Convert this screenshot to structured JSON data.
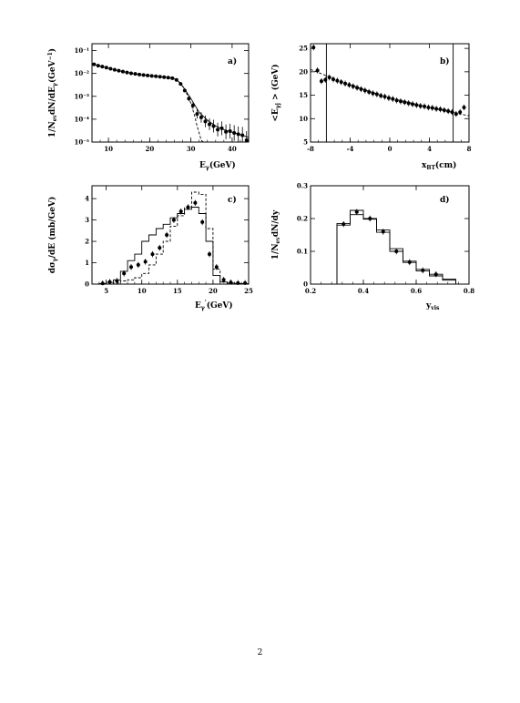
{
  "page_number": "2",
  "chart_data": [
    {
      "type": "scatter",
      "panel": "a)",
      "xlabel": "E_γ(GeV)",
      "ylabel": "1/N_ev dN/dE_γ(GeV^-1)",
      "xlim": [
        6,
        44
      ],
      "ylim": [
        1e-05,
        0.2
      ],
      "yscale": "log",
      "xticks": [
        10,
        20,
        30,
        40
      ],
      "yticks": [
        1e-05,
        0.0001,
        0.001,
        0.01,
        0.1
      ],
      "ytick_labels": [
        "10^-5",
        "10^-4",
        "10^-3",
        "10^-2",
        "10^-1"
      ],
      "points": {
        "x": [
          6.5,
          7.5,
          8.5,
          9.5,
          10.5,
          11.5,
          12.5,
          13.5,
          14.5,
          15.5,
          16.5,
          17.5,
          18.5,
          19.5,
          20.5,
          21.5,
          22.5,
          23.5,
          24.5,
          25.5,
          26.5,
          27.5,
          28.5,
          29.5,
          30.5,
          31.5,
          32.5,
          33.5,
          34.5,
          35.5,
          36.5,
          37.5,
          38.5,
          39.5,
          40.5,
          41.5,
          42.5,
          43.5
        ],
        "y": [
          0.025,
          0.022,
          0.02,
          0.018,
          0.016,
          0.0145,
          0.0132,
          0.012,
          0.011,
          0.0102,
          0.0096,
          0.009,
          0.0086,
          0.0082,
          0.0078,
          0.0075,
          0.0072,
          0.0069,
          0.0066,
          0.0062,
          0.0052,
          0.0035,
          0.0018,
          0.0008,
          0.0004,
          0.00017,
          0.00012,
          8e-05,
          6e-05,
          5e-05,
          3.5e-05,
          4e-05,
          2.8e-05,
          3e-05,
          2.5e-05,
          2.2e-05,
          2e-05,
          1.2e-05
        ],
        "yerr_factor": [
          1,
          1,
          1,
          1,
          1,
          1,
          1,
          1,
          1,
          1,
          1,
          1,
          1,
          1,
          1,
          1,
          1,
          1,
          1,
          1,
          1.1,
          1.15,
          1.2,
          1.3,
          1.4,
          1.6,
          1.7,
          1.8,
          1.8,
          1.9,
          2.0,
          2.0,
          2.1,
          2.1,
          2.2,
          2.2,
          2.3,
          2.5
        ]
      },
      "curve_solid": {
        "x": [
          6,
          8,
          10,
          12,
          14,
          16,
          18,
          20,
          22,
          24,
          25,
          26,
          27,
          28,
          29,
          30,
          31,
          32,
          34,
          36,
          38,
          40,
          42,
          44
        ],
        "y": [
          0.026,
          0.021,
          0.017,
          0.0138,
          0.0115,
          0.0099,
          0.0088,
          0.0079,
          0.0073,
          0.0067,
          0.0064,
          0.0058,
          0.0045,
          0.0028,
          0.0015,
          0.0008,
          0.0004,
          0.0002,
          9e-05,
          5e-05,
          3.5e-05,
          2.7e-05,
          2.1e-05,
          1.6e-05
        ]
      },
      "curve_dashed": {
        "x": [
          25,
          26,
          27,
          28,
          29,
          30,
          31,
          31.5,
          32,
          32.5,
          33
        ],
        "y": [
          0.0064,
          0.0057,
          0.0044,
          0.0027,
          0.0013,
          0.0005,
          0.00012,
          5e-05,
          2.5e-05,
          1.2e-05,
          8e-06
        ]
      }
    },
    {
      "type": "scatter",
      "panel": "b)",
      "xlabel": "x_BT(cm)",
      "ylabel": "<E_γj > (GeV)",
      "xlim": [
        -8,
        8
      ],
      "ylim": [
        5,
        26
      ],
      "xticks": [
        -8,
        -4,
        0,
        4,
        8
      ],
      "yticks": [
        5,
        10,
        15,
        20,
        25
      ],
      "vlines": [
        -6.4,
        6.4
      ],
      "points": {
        "x": [
          -7.7,
          -7.3,
          -6.9,
          -6.5,
          -6.1,
          -5.7,
          -5.3,
          -4.9,
          -4.5,
          -4.1,
          -3.7,
          -3.3,
          -2.9,
          -2.5,
          -2.1,
          -1.7,
          -1.3,
          -0.9,
          -0.5,
          -0.1,
          0.3,
          0.7,
          1.1,
          1.5,
          1.9,
          2.3,
          2.7,
          3.1,
          3.5,
          3.9,
          4.3,
          4.7,
          5.1,
          5.5,
          5.9,
          6.3,
          6.7,
          7.1,
          7.5
        ],
        "y": [
          25.2,
          20.3,
          18.0,
          18.3,
          18.8,
          18.4,
          18.1,
          17.8,
          17.5,
          17.2,
          16.9,
          16.6,
          16.3,
          16.0,
          15.7,
          15.4,
          15.2,
          14.9,
          14.7,
          14.4,
          14.2,
          13.9,
          13.7,
          13.5,
          13.3,
          13.1,
          12.9,
          12.7,
          12.6,
          12.4,
          12.3,
          12.1,
          12.0,
          11.8,
          11.6,
          11.4,
          11.0,
          11.4,
          12.4
        ]
      },
      "curve_dashed": {
        "x": [
          -8,
          -4,
          0,
          4,
          8
        ],
        "y": [
          20.5,
          17.2,
          14.4,
          12.4,
          10.6
        ]
      }
    },
    {
      "type": "step",
      "panel": "c)",
      "xlabel": "E'_γ(GeV)",
      "ylabel": "dσ_γ/dE (mb/GeV)",
      "xlim": [
        3,
        25
      ],
      "ylim": [
        0,
        4.6
      ],
      "xticks": [
        5,
        10,
        15,
        20,
        25
      ],
      "yticks": [
        0,
        1,
        2,
        3,
        4
      ],
      "bin_edges": [
        4,
        5,
        6,
        7,
        8,
        9,
        10,
        11,
        12,
        13,
        14,
        15,
        16,
        17,
        18,
        19,
        20,
        21,
        22,
        23,
        24,
        25
      ],
      "solid": [
        0.02,
        0.08,
        0.2,
        0.6,
        1.1,
        1.4,
        2.0,
        2.3,
        2.6,
        2.8,
        3.1,
        3.3,
        3.5,
        3.6,
        3.3,
        2.0,
        0.4,
        0.1,
        0.05,
        0.03,
        0.02
      ],
      "dashed": [
        0,
        0,
        0.05,
        0.15,
        0.2,
        0.3,
        0.5,
        0.9,
        1.4,
        2.0,
        2.7,
        3.2,
        3.6,
        4.3,
        4.2,
        2.6,
        0.7,
        0.1,
        0.02,
        0,
        0
      ],
      "points": {
        "x": [
          4.5,
          5.5,
          6.5,
          7.5,
          8.5,
          9.5,
          10.5,
          11.5,
          12.5,
          13.5,
          14.5,
          15.5,
          16.5,
          17.5,
          18.5,
          19.5,
          20.5,
          21.5,
          22.5,
          23.5,
          24.5
        ],
        "y": [
          0.03,
          0.1,
          0.15,
          0.5,
          0.8,
          0.9,
          1.05,
          1.4,
          1.7,
          2.3,
          3.0,
          3.4,
          3.6,
          3.8,
          2.9,
          1.4,
          0.8,
          0.2,
          0.08,
          0.05,
          0.05
        ]
      }
    },
    {
      "type": "step",
      "panel": "d)",
      "xlabel": "y_vis",
      "ylabel": "1/N_ev dN/dy",
      "xlim": [
        0.2,
        0.8
      ],
      "ylim": [
        0,
        0.3
      ],
      "xticks": [
        0.2,
        0.4,
        0.6,
        0.8
      ],
      "yticks": [
        0,
        0.1,
        0.2,
        0.3
      ],
      "bin_edges": [
        0.3,
        0.35,
        0.4,
        0.45,
        0.5,
        0.55,
        0.6,
        0.65,
        0.7,
        0.75
      ],
      "histA": [
        0.18,
        0.225,
        0.2,
        0.165,
        0.108,
        0.07,
        0.045,
        0.03,
        0.015
      ],
      "histB": [
        0.185,
        0.212,
        0.198,
        0.158,
        0.1,
        0.066,
        0.04,
        0.025,
        0.012
      ],
      "points": {
        "x": [
          0.325,
          0.375,
          0.425,
          0.475,
          0.525,
          0.575,
          0.625,
          0.675
        ],
        "y": [
          0.183,
          0.22,
          0.2,
          0.16,
          0.1,
          0.067,
          0.042,
          0.03
        ]
      }
    }
  ]
}
